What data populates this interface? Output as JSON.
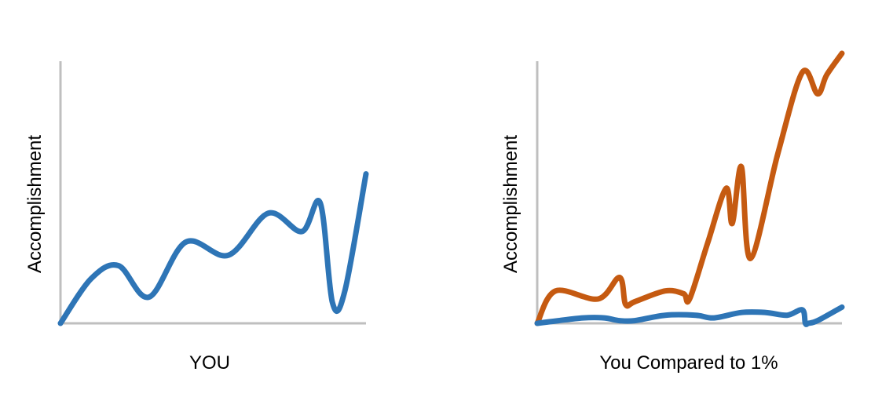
{
  "chart_data": [
    {
      "type": "line",
      "xlabel": "YOU",
      "ylabel": "Accomplishment",
      "xlim": [
        0,
        100
      ],
      "ylim": [
        0,
        100
      ],
      "grid": false,
      "series": [
        {
          "color": "#2e75b6",
          "x": [
            0,
            10,
            19,
            29,
            41,
            55,
            68,
            79,
            85,
            89,
            93,
            100
          ],
          "y": [
            0,
            17,
            22,
            10,
            31,
            26,
            42,
            35,
            46,
            8,
            12,
            57
          ]
        }
      ]
    },
    {
      "type": "line",
      "xlabel": "You Compared to 1%",
      "ylabel": "Accomplishment",
      "xlim": [
        0,
        100
      ],
      "ylim": [
        0,
        100
      ],
      "grid": false,
      "series": [
        {
          "color": "#c55a11",
          "x": [
            0,
            6,
            20,
            27,
            29,
            32,
            42,
            48,
            50,
            56,
            62,
            64,
            67,
            70,
            79,
            87,
            92,
            95,
            100
          ],
          "y": [
            0,
            12,
            9,
            17,
            7,
            8,
            12,
            11,
            9,
            30,
            50,
            37,
            58,
            24,
            63,
            93,
            85,
            92,
            100
          ]
        },
        {
          "color": "#2e75b6",
          "x": [
            0,
            7,
            15,
            22,
            27,
            32,
            42,
            52,
            58,
            67,
            75,
            82,
            87,
            88,
            89,
            92,
            100
          ],
          "y": [
            0,
            1,
            2,
            2,
            1,
            1,
            3,
            3,
            2,
            4,
            4,
            3,
            5,
            0,
            0,
            1,
            6
          ]
        }
      ]
    }
  ]
}
